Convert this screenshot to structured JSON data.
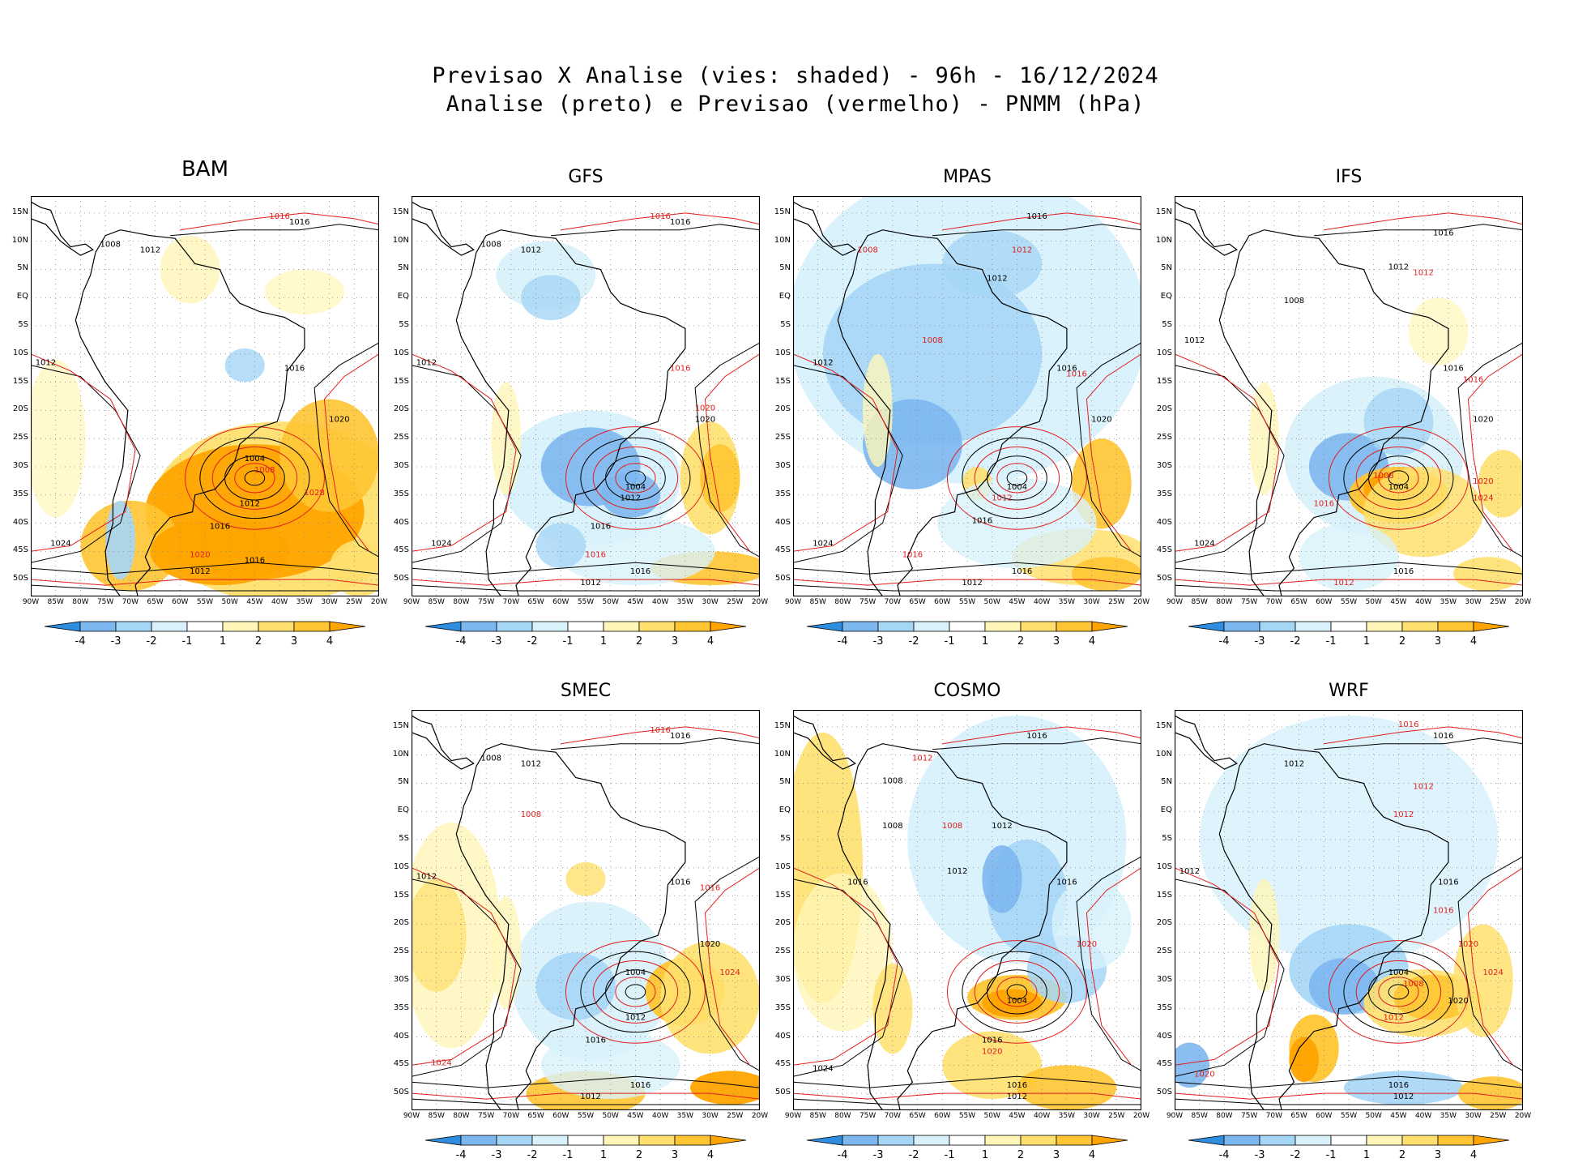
{
  "title_line1": "Previsao X Analise (vies: shaded) - 96h - 16/12/2024",
  "title_line2": "Analise (preto) e Previsao (vermelho) - PNMM (hPa)",
  "colors": {
    "neg4": "#2f8de0",
    "neg3": "#7db7ef",
    "neg2": "#a5d6f6",
    "neg1": "#d8f1fb",
    "zero": "#ffffff",
    "pos1": "#fff6b8",
    "pos2": "#ffe06e",
    "pos3": "#ffc533",
    "pos4": "#ffa400",
    "analysis": "#000000",
    "forecast": "#e01e1e"
  },
  "colorbar_labels": [
    "-4",
    "-3",
    "-2",
    "-1",
    "1",
    "2",
    "3",
    "4"
  ],
  "lat_labels": [
    "15N",
    "10N",
    "5N",
    "EQ",
    "5S",
    "10S",
    "15S",
    "20S",
    "25S",
    "30S",
    "35S",
    "40S",
    "45S",
    "50S"
  ],
  "lon_labels": [
    "90W",
    "85W",
    "80W",
    "75W",
    "70W",
    "65W",
    "60W",
    "55W",
    "50W",
    "45W",
    "40W",
    "35W",
    "30W",
    "25W",
    "20W"
  ],
  "panels": [
    {
      "name": "BAM",
      "style": "warm",
      "labels": [
        [
          "1016",
          -36,
          13,
          "k"
        ],
        [
          "1016",
          -40,
          14,
          "r"
        ],
        [
          "1008",
          -74,
          9,
          "k"
        ],
        [
          "1012",
          -66,
          8,
          "k"
        ],
        [
          "1012",
          -87,
          -12,
          "k"
        ],
        [
          "1016",
          -37,
          -13,
          "k"
        ],
        [
          "1020",
          -28,
          -22,
          "k"
        ],
        [
          "1004",
          -45,
          -29,
          "k"
        ],
        [
          "1008",
          -43,
          -31,
          "r"
        ],
        [
          "1012",
          -46,
          -37,
          "k"
        ],
        [
          "1016",
          -52,
          -41,
          "k"
        ],
        [
          "1020",
          -56,
          -46,
          "r"
        ],
        [
          "1016",
          -45,
          -47,
          "k"
        ],
        [
          "1012",
          -56,
          -49,
          "k"
        ],
        [
          "1024",
          -84,
          -44,
          "k"
        ],
        [
          "1028",
          -33,
          -35,
          "r"
        ]
      ]
    },
    {
      "name": "GFS",
      "style": "cold-low",
      "labels": [
        [
          "1016",
          -36,
          13,
          "k"
        ],
        [
          "1016",
          -40,
          14,
          "r"
        ],
        [
          "1008",
          -74,
          9,
          "k"
        ],
        [
          "1012",
          -66,
          8,
          "k"
        ],
        [
          "1012",
          -87,
          -12,
          "k"
        ],
        [
          "1016",
          -36,
          -13,
          "r"
        ],
        [
          "1020",
          -31,
          -22,
          "k"
        ],
        [
          "1020",
          -31,
          -20,
          "r"
        ],
        [
          "1004",
          -45,
          -34,
          "k"
        ],
        [
          "1012",
          -46,
          -36,
          "k"
        ],
        [
          "1016",
          -52,
          -41,
          "k"
        ],
        [
          "1016",
          -53,
          -46,
          "r"
        ],
        [
          "1016",
          -44,
          -49,
          "k"
        ],
        [
          "1012",
          -54,
          -51,
          "k"
        ],
        [
          "1024",
          -84,
          -44,
          "k"
        ]
      ]
    },
    {
      "name": "MPAS",
      "style": "cold-wide",
      "labels": [
        [
          "1016",
          -41,
          14,
          "k"
        ],
        [
          "1012",
          -49,
          3,
          "k"
        ],
        [
          "1012",
          -44,
          8,
          "r"
        ],
        [
          "1008",
          -75,
          8,
          "r"
        ],
        [
          "1012",
          -84,
          -12,
          "k"
        ],
        [
          "1008",
          -62,
          -8,
          "r"
        ],
        [
          "1016",
          -35,
          -13,
          "k"
        ],
        [
          "1016",
          -33,
          -14,
          "r"
        ],
        [
          "1020",
          -28,
          -22,
          "k"
        ],
        [
          "1004",
          -45,
          -34,
          "k"
        ],
        [
          "1012",
          -48,
          -36,
          "r"
        ],
        [
          "1016",
          -52,
          -40,
          "k"
        ],
        [
          "1016",
          -66,
          -46,
          "r"
        ],
        [
          "1016",
          -44,
          -49,
          "k"
        ],
        [
          "1012",
          -54,
          -51,
          "k"
        ],
        [
          "1024",
          -84,
          -44,
          "k"
        ]
      ]
    },
    {
      "name": "IFS",
      "style": "mixed",
      "labels": [
        [
          "1016",
          -36,
          11,
          "k"
        ],
        [
          "1012",
          -45,
          5,
          "k"
        ],
        [
          "1012",
          -40,
          4,
          "r"
        ],
        [
          "1008",
          -66,
          -1,
          "k"
        ],
        [
          "1012",
          -86,
          -8,
          "k"
        ],
        [
          "1016",
          -34,
          -13,
          "k"
        ],
        [
          "1016",
          -30,
          -15,
          "r"
        ],
        [
          "1020",
          -28,
          -22,
          "k"
        ],
        [
          "1004",
          -45,
          -34,
          "k"
        ],
        [
          "1008",
          -48,
          -32,
          "r"
        ],
        [
          "1020",
          -28,
          -33,
          "r"
        ],
        [
          "1024",
          -28,
          -36,
          "r"
        ],
        [
          "1016",
          -60,
          -37,
          "r"
        ],
        [
          "1016",
          -44,
          -49,
          "k"
        ],
        [
          "1012",
          -56,
          -51,
          "r"
        ],
        [
          "1024",
          -84,
          -44,
          "k"
        ]
      ]
    },
    {
      "name": "SMEC",
      "style": "mixed2",
      "labels": [
        [
          "1016",
          -36,
          13,
          "k"
        ],
        [
          "1016",
          -40,
          14,
          "r"
        ],
        [
          "1008",
          -74,
          9,
          "k"
        ],
        [
          "1012",
          -66,
          8,
          "k"
        ],
        [
          "1012",
          -87,
          -12,
          "k"
        ],
        [
          "1008",
          -66,
          -1,
          "r"
        ],
        [
          "1016",
          -36,
          -13,
          "k"
        ],
        [
          "1016",
          -30,
          -14,
          "r"
        ],
        [
          "1020",
          -30,
          -24,
          "k"
        ],
        [
          "1004",
          -45,
          -29,
          "k"
        ],
        [
          "1024",
          -26,
          -29,
          "r"
        ],
        [
          "1012",
          -45,
          -37,
          "k"
        ],
        [
          "1016",
          -53,
          -41,
          "k"
        ],
        [
          "1016",
          -44,
          -49,
          "k"
        ],
        [
          "1012",
          -54,
          -51,
          "k"
        ],
        [
          "1024",
          -84,
          -45,
          "r"
        ]
      ]
    },
    {
      "name": "COSMO",
      "style": "cosmo",
      "labels": [
        [
          "1016",
          -41,
          13,
          "k"
        ],
        [
          "1012",
          -64,
          9,
          "r"
        ],
        [
          "1008",
          -70,
          5,
          "k"
        ],
        [
          "1008",
          -70,
          -3,
          "k"
        ],
        [
          "1008",
          -58,
          -3,
          "r"
        ],
        [
          "1012",
          -48,
          -3,
          "k"
        ],
        [
          "1012",
          -57,
          -11,
          "k"
        ],
        [
          "1016",
          -77,
          -13,
          "k"
        ],
        [
          "1016",
          -35,
          -13,
          "k"
        ],
        [
          "1020",
          -31,
          -24,
          "r"
        ],
        [
          "1004",
          -45,
          -34,
          "k"
        ],
        [
          "1016",
          -50,
          -41,
          "k"
        ],
        [
          "1020",
          -50,
          -43,
          "r"
        ],
        [
          "1016",
          -45,
          -49,
          "k"
        ],
        [
          "1012",
          -45,
          -51,
          "k"
        ],
        [
          "1024",
          -84,
          -46,
          "k"
        ]
      ]
    },
    {
      "name": "WRF",
      "style": "wrf",
      "labels": [
        [
          "1016",
          -43,
          15,
          "r"
        ],
        [
          "1016",
          -36,
          13,
          "k"
        ],
        [
          "1012",
          -66,
          8,
          "k"
        ],
        [
          "1012",
          -40,
          4,
          "r"
        ],
        [
          "1012",
          -44,
          -1,
          "r"
        ],
        [
          "1012",
          -87,
          -11,
          "k"
        ],
        [
          "1016",
          -35,
          -13,
          "k"
        ],
        [
          "1016",
          -36,
          -18,
          "r"
        ],
        [
          "1020",
          -31,
          -24,
          "r"
        ],
        [
          "1004",
          -45,
          -29,
          "k"
        ],
        [
          "1008",
          -42,
          -31,
          "r"
        ],
        [
          "1020",
          -33,
          -34,
          "k"
        ],
        [
          "1024",
          -26,
          -29,
          "r"
        ],
        [
          "1012",
          -46,
          -37,
          "r"
        ],
        [
          "1016",
          -45,
          -49,
          "k"
        ],
        [
          "1012",
          -44,
          -51,
          "k"
        ],
        [
          "1020",
          -84,
          -47,
          "r"
        ]
      ]
    }
  ]
}
